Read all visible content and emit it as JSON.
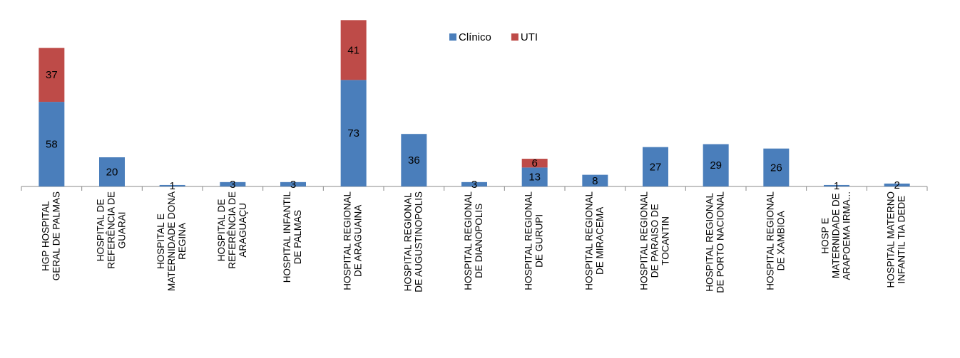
{
  "chart_data": {
    "type": "bar",
    "stacked": true,
    "categories": [
      [
        "HGP HOSPITAL",
        "GERAL DE PALMAS"
      ],
      [
        "HOSPITAL DE",
        "REFERÊNCIA DE",
        "GUARAI"
      ],
      [
        "HOSPITAL E",
        "MATERNIDADE DONA",
        "REGINA"
      ],
      [
        "HOSPITAL DE",
        "REFERÊNCIA DE",
        "ARAGUAÇU"
      ],
      [
        "HOSPITAL INFANTIL",
        "DE PALMAS"
      ],
      [
        "HOSPITAL REGIONAL",
        "DE ARAGUAINA"
      ],
      [
        "HOSPITAL REGIONAL",
        "DE AUGUSTINOPOLIS"
      ],
      [
        "HOSPITAL REGIONAL",
        "DE DIANOPOLIS"
      ],
      [
        "HOSPITAL REGIONAL",
        "DE GURUPI"
      ],
      [
        "HOSPITAL REGIONAL",
        "DE MIRACEMA"
      ],
      [
        "HOSPITAL REGIONAL",
        "DE PARAISO DE",
        "TOCANTIN"
      ],
      [
        "HOSPITAL REGIONAL",
        "DE PORTO NACIONAL"
      ],
      [
        "HOSPITAL REGIONAL",
        "DE XAMBIOA"
      ],
      [
        "HOSP E",
        "MATERNIDADE DE",
        "ARAPOEMA IRMA..."
      ],
      [
        "HOSPITAL MATERNO",
        "INFANTIL TIA DEDE"
      ]
    ],
    "series": [
      {
        "name": "Clínico",
        "color": "#4a7ebb",
        "values": [
          58,
          20,
          1,
          3,
          3,
          73,
          36,
          3,
          13,
          8,
          27,
          29,
          26,
          1,
          2
        ]
      },
      {
        "name": "UTI",
        "color": "#be4b48",
        "values": [
          37,
          null,
          null,
          null,
          null,
          41,
          null,
          null,
          6,
          null,
          null,
          null,
          null,
          null,
          null
        ]
      }
    ],
    "ylim": [
      0,
      120
    ]
  }
}
